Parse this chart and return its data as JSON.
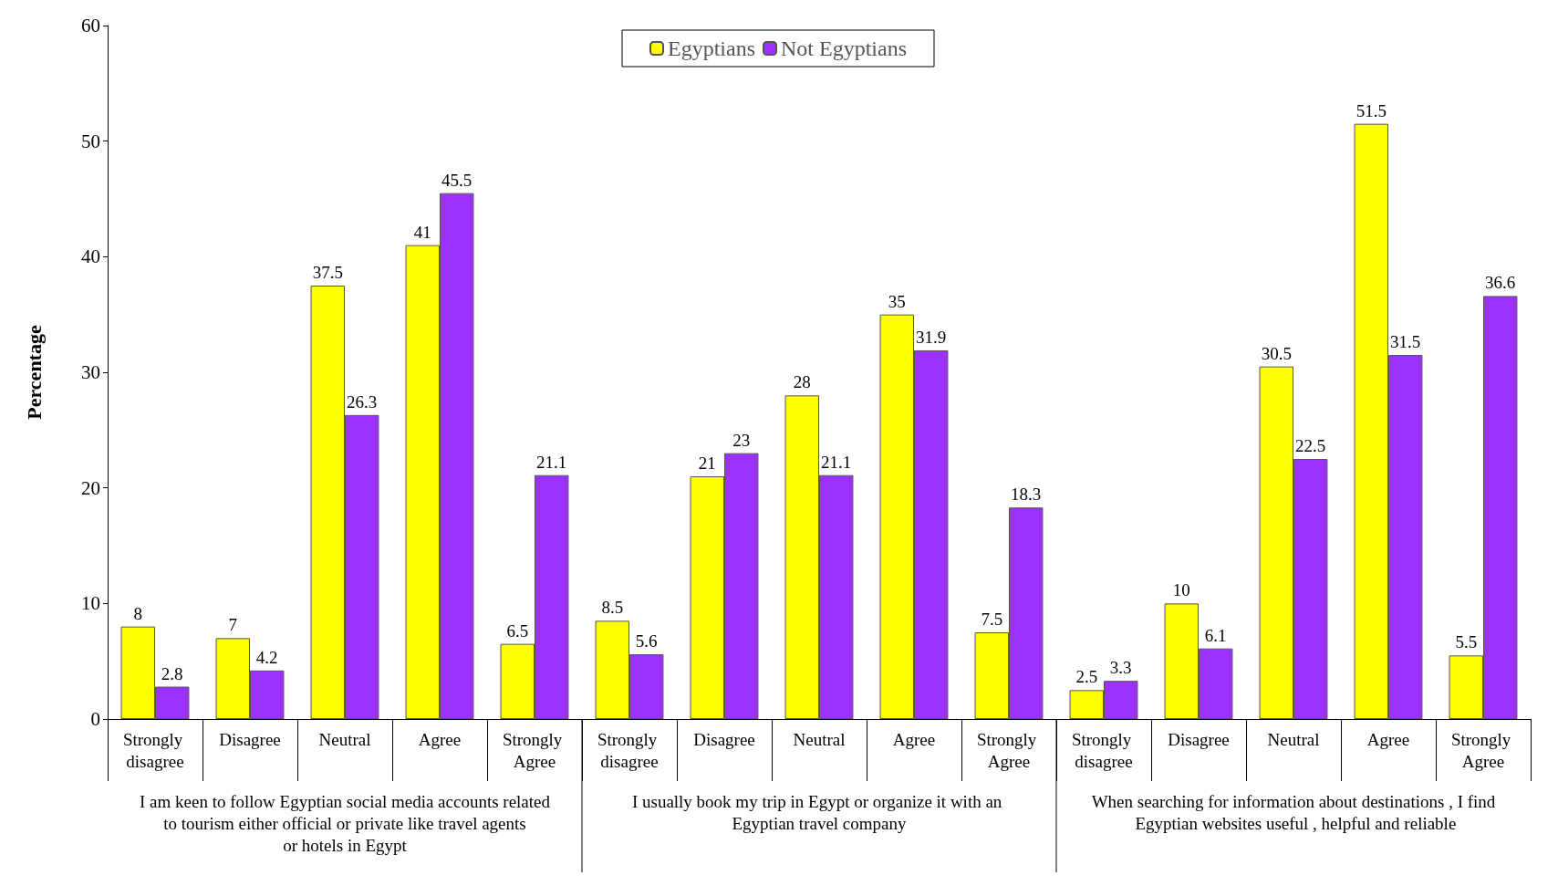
{
  "chart_data": {
    "type": "bar",
    "ylabel": "Percentage",
    "categories": [
      "Strongly disagree",
      "Disagree",
      "Neutral",
      "Agree",
      "Strongly Agree",
      "Strongly disagree",
      "Disagree",
      "Neutral",
      "Agree",
      "Strongly Agree",
      "Strongly disagree",
      "Disagree",
      "Neutral",
      "Agree",
      "Strongly Agree"
    ],
    "series": [
      {
        "name": "Egyptians",
        "color": "#ffff00",
        "values": [
          8,
          7,
          37.5,
          41,
          6.5,
          8.5,
          21,
          28,
          35,
          7.5,
          2.5,
          10,
          30.5,
          51.5,
          5.5
        ]
      },
      {
        "name": "Not Egyptians",
        "color": "#9b30ff",
        "values": [
          2.8,
          4.2,
          26.3,
          45.5,
          21.1,
          5.6,
          23,
          21.1,
          31.9,
          18.3,
          3.3,
          6.1,
          22.5,
          31.5,
          36.6
        ]
      }
    ],
    "ylim": [
      0,
      60
    ],
    "yticks": [
      0,
      10,
      20,
      30,
      40,
      50,
      60
    ],
    "grid": false,
    "legend": "top",
    "data_labels": true,
    "annotations": [
      "I am keen to follow Egyptian social media accounts related to tourism either official or private like travel agents or hotels in Egypt",
      "I usually book my trip in Egypt or organize it with an Egyptian travel company",
      "When searching for information about destinations , I find Egyptian websites useful , helpful and reliable"
    ]
  }
}
